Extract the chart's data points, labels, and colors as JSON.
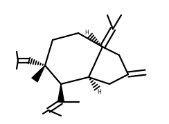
{
  "bg_color": "#ffffff",
  "line_color": "#000000",
  "line_width": 1.6,
  "figsize": [
    2.44,
    1.8
  ],
  "dpi": 100
}
